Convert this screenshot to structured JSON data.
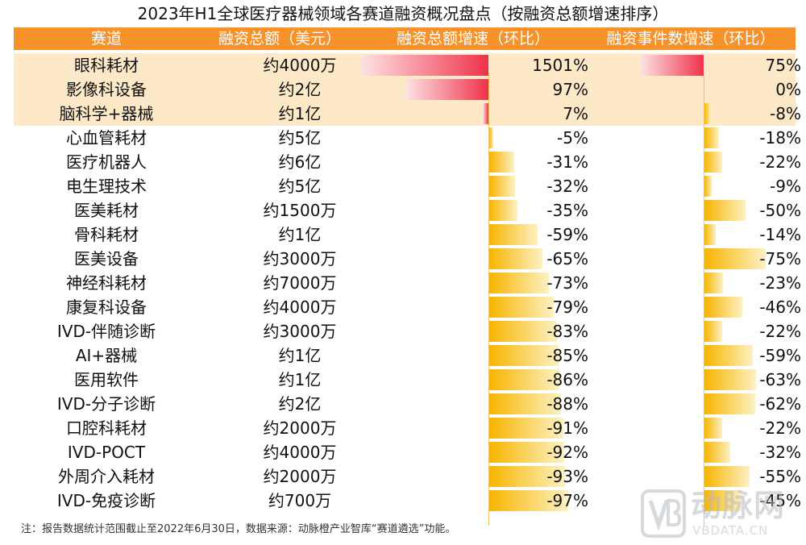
{
  "title": "2023年H1全球医疗器械领域各赛道融资概况盘点（按融资总额增速排序）",
  "columns": [
    "赛道",
    "融资总额（美元）",
    "融资总额增速（环比）",
    "融资事件数增速（环比）"
  ],
  "chart_data": {
    "type": "table",
    "title": "2023年H1全球医疗器械领域各赛道融资概况盘点（按融资总额增速排序）",
    "rows": [
      {
        "track": "眼科耗材",
        "amount": "约4000万",
        "amount_growth": 1501,
        "amount_growth_label": "1501%",
        "event_growth": 75,
        "event_growth_label": "75%",
        "highlight": true
      },
      {
        "track": "影像科设备",
        "amount": "约2亿",
        "amount_growth": 97,
        "amount_growth_label": "97%",
        "event_growth": 0,
        "event_growth_label": "0%",
        "highlight": true
      },
      {
        "track": "脑科学+器械",
        "amount": "约1亿",
        "amount_growth": 7,
        "amount_growth_label": "7%",
        "event_growth": -8,
        "event_growth_label": "-8%",
        "highlight": true
      },
      {
        "track": "心血管耗材",
        "amount": "约5亿",
        "amount_growth": -5,
        "amount_growth_label": "-5%",
        "event_growth": -18,
        "event_growth_label": "-18%",
        "highlight": false
      },
      {
        "track": "医疗机器人",
        "amount": "约6亿",
        "amount_growth": -31,
        "amount_growth_label": "-31%",
        "event_growth": -22,
        "event_growth_label": "-22%",
        "highlight": false
      },
      {
        "track": "电生理技术",
        "amount": "约5亿",
        "amount_growth": -32,
        "amount_growth_label": "-32%",
        "event_growth": -9,
        "event_growth_label": "-9%",
        "highlight": false
      },
      {
        "track": "医美耗材",
        "amount": "约1500万",
        "amount_growth": -35,
        "amount_growth_label": "-35%",
        "event_growth": -50,
        "event_growth_label": "-50%",
        "highlight": false
      },
      {
        "track": "骨科耗材",
        "amount": "约1亿",
        "amount_growth": -59,
        "amount_growth_label": "-59%",
        "event_growth": -14,
        "event_growth_label": "-14%",
        "highlight": false
      },
      {
        "track": "医美设备",
        "amount": "约3000万",
        "amount_growth": -65,
        "amount_growth_label": "-65%",
        "event_growth": -75,
        "event_growth_label": "-75%",
        "highlight": false
      },
      {
        "track": "神经科耗材",
        "amount": "约7000万",
        "amount_growth": -73,
        "amount_growth_label": "-73%",
        "event_growth": -23,
        "event_growth_label": "-23%",
        "highlight": false
      },
      {
        "track": "康复科设备",
        "amount": "约4000万",
        "amount_growth": -79,
        "amount_growth_label": "-79%",
        "event_growth": -46,
        "event_growth_label": "-46%",
        "highlight": false
      },
      {
        "track": "IVD-伴随诊断",
        "amount": "约3000万",
        "amount_growth": -83,
        "amount_growth_label": "-83%",
        "event_growth": -22,
        "event_growth_label": "-22%",
        "highlight": false
      },
      {
        "track": "AI+器械",
        "amount": "约1亿",
        "amount_growth": -85,
        "amount_growth_label": "-85%",
        "event_growth": -59,
        "event_growth_label": "-59%",
        "highlight": false
      },
      {
        "track": "医用软件",
        "amount": "约1亿",
        "amount_growth": -86,
        "amount_growth_label": "-86%",
        "event_growth": -63,
        "event_growth_label": "-63%",
        "highlight": false
      },
      {
        "track": "IVD-分子诊断",
        "amount": "约2亿",
        "amount_growth": -88,
        "amount_growth_label": "-88%",
        "event_growth": -62,
        "event_growth_label": "-62%",
        "highlight": false
      },
      {
        "track": "口腔科耗材",
        "amount": "约2000万",
        "amount_growth": -91,
        "amount_growth_label": "-91%",
        "event_growth": -22,
        "event_growth_label": "-22%",
        "highlight": false
      },
      {
        "track": "IVD-POCT",
        "amount": "约4000万",
        "amount_growth": -92,
        "amount_growth_label": "-92%",
        "event_growth": -32,
        "event_growth_label": "-32%",
        "highlight": false
      },
      {
        "track": "外周介入耗材",
        "amount": "约2000万",
        "amount_growth": -93,
        "amount_growth_label": "-93%",
        "event_growth": -55,
        "event_growth_label": "-55%",
        "highlight": false
      },
      {
        "track": "IVD-免疫诊断",
        "amount": "约700万",
        "amount_growth": -97,
        "amount_growth_label": "-97%",
        "event_growth": -45,
        "event_growth_label": "-45%",
        "highlight": false
      }
    ]
  },
  "note": "注：报告数据统计范围截止至2022年6月30日，数据来源：动脉橙产业智库“赛道遴选”功能。",
  "watermark": {
    "cn": "动脉网",
    "en": "VBDATA.CN"
  },
  "colors": {
    "header": "#f7922a",
    "highlight_row": "#fde9c7",
    "positive_bar": "#f0324b",
    "negative_bar": "#f7b500"
  }
}
